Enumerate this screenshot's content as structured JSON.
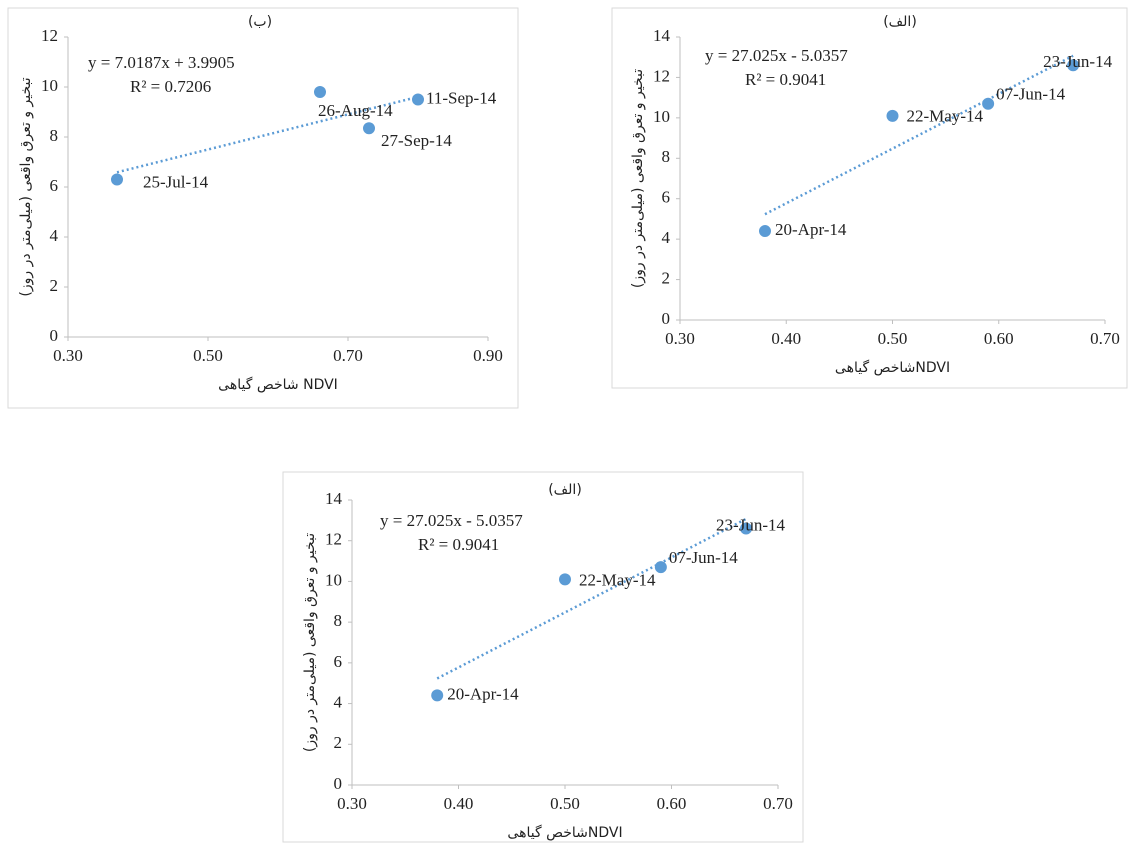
{
  "chart_data": [
    {
      "type": "scatter",
      "title": "(ب)",
      "equation": "y = 7.0187x + 3.9905",
      "r_squared": "R² = 0.7206",
      "trendline": {
        "slope": 7.0187,
        "intercept": 3.9905
      },
      "x_label": "شاخص گیاهی NDVI",
      "y_label": "تبخیر و تعرق واقعی (میلی‌متر در روز)",
      "x": [
        0.37,
        0.66,
        0.8,
        0.73
      ],
      "values": [
        6.3,
        9.8,
        9.5,
        8.35
      ],
      "point_labels": [
        "25-Jul-14",
        "26-Aug-14",
        "11-Sep-14",
        "27-Sep-14"
      ],
      "color": "#5b9bd5",
      "xlim": [
        0.3,
        0.9
      ],
      "xticks": [
        {
          "value": 0.3,
          "label": "0.30"
        },
        {
          "value": 0.5,
          "label": "0.50"
        },
        {
          "value": 0.7,
          "label": "0.70"
        },
        {
          "value": 0.9,
          "label": "0.90"
        }
      ],
      "ylim": [
        0,
        12
      ],
      "yticks": [
        0,
        2,
        4,
        6,
        8,
        10,
        12
      ]
    },
    {
      "type": "scatter",
      "title": "(الف)",
      "equation": "y = 27.025x - 5.0357",
      "r_squared": "R² = 0.9041",
      "trendline": {
        "slope": 27.025,
        "intercept": -5.0357
      },
      "x_label": "شاخص گیاهیNDVI",
      "y_label": "تبخیر و تعرق واقعی (میلی‌متر در روز)",
      "x": [
        0.38,
        0.5,
        0.59,
        0.67
      ],
      "values": [
        4.4,
        10.1,
        10.7,
        12.6
      ],
      "point_labels": [
        "20-Apr-14",
        "22-May-14",
        "07-Jun-14",
        "23-Jun-14"
      ],
      "color": "#5b9bd5",
      "xlim": [
        0.3,
        0.7
      ],
      "xticks": [
        {
          "value": 0.3,
          "label": "0.30"
        },
        {
          "value": 0.4,
          "label": "0.40"
        },
        {
          "value": 0.5,
          "label": "0.50"
        },
        {
          "value": 0.6,
          "label": "0.60"
        },
        {
          "value": 0.7,
          "label": "0.70"
        }
      ],
      "ylim": [
        0,
        14
      ],
      "yticks": [
        0,
        2,
        4,
        6,
        8,
        10,
        12,
        14
      ]
    },
    {
      "type": "scatter",
      "title": "(الف)",
      "equation": "y = 27.025x - 5.0357",
      "r_squared": "R² = 0.9041",
      "trendline": {
        "slope": 27.025,
        "intercept": -5.0357
      },
      "x_label": "شاخص گیاهیNDVI",
      "y_label": "تبخیر و تعرق واقعی (میلی‌متر در روز)",
      "x": [
        0.38,
        0.5,
        0.59,
        0.67
      ],
      "values": [
        4.4,
        10.1,
        10.7,
        12.6
      ],
      "point_labels": [
        "20-Apr-14",
        "22-May-14",
        "07-Jun-14",
        "23-Jun-14"
      ],
      "color": "#5b9bd5",
      "xlim": [
        0.3,
        0.7
      ],
      "xticks": [
        {
          "value": 0.3,
          "label": "0.30"
        },
        {
          "value": 0.4,
          "label": "0.40"
        },
        {
          "value": 0.5,
          "label": "0.50"
        },
        {
          "value": 0.6,
          "label": "0.60"
        },
        {
          "value": 0.7,
          "label": "0.70"
        }
      ],
      "ylim": [
        0,
        14
      ],
      "yticks": [
        0,
        2,
        4,
        6,
        8,
        10,
        12,
        14
      ]
    }
  ]
}
